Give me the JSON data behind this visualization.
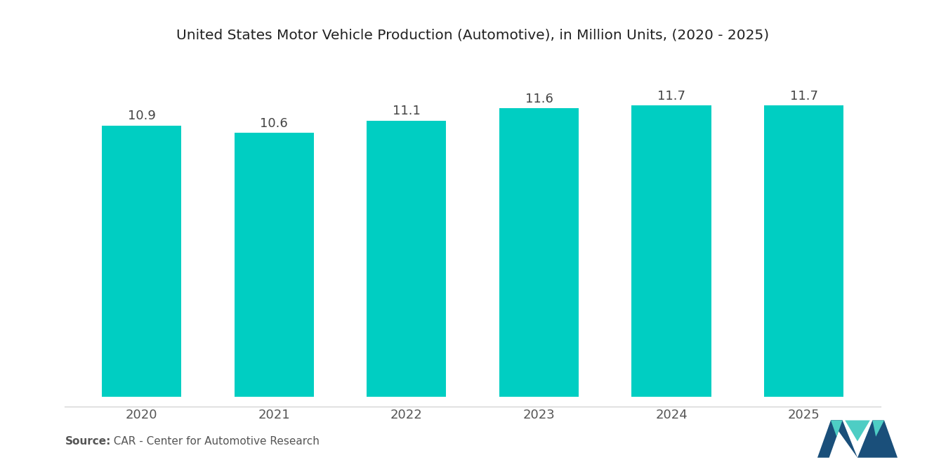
{
  "title": "United States Motor Vehicle Production (Automotive), in Million Units, (2020 - 2025)",
  "categories": [
    "2020",
    "2021",
    "2022",
    "2023",
    "2024",
    "2025"
  ],
  "values": [
    10.9,
    10.6,
    11.1,
    11.6,
    11.7,
    11.7
  ],
  "bar_color": "#00CEC2",
  "background_color": "#ffffff",
  "title_fontsize": 14.5,
  "label_fontsize": 13,
  "value_fontsize": 13,
  "source_bold": "Source:",
  "source_rest": "  CAR - Center for Automotive Research",
  "ylim": [
    0,
    13.5
  ],
  "bar_width": 0.6
}
